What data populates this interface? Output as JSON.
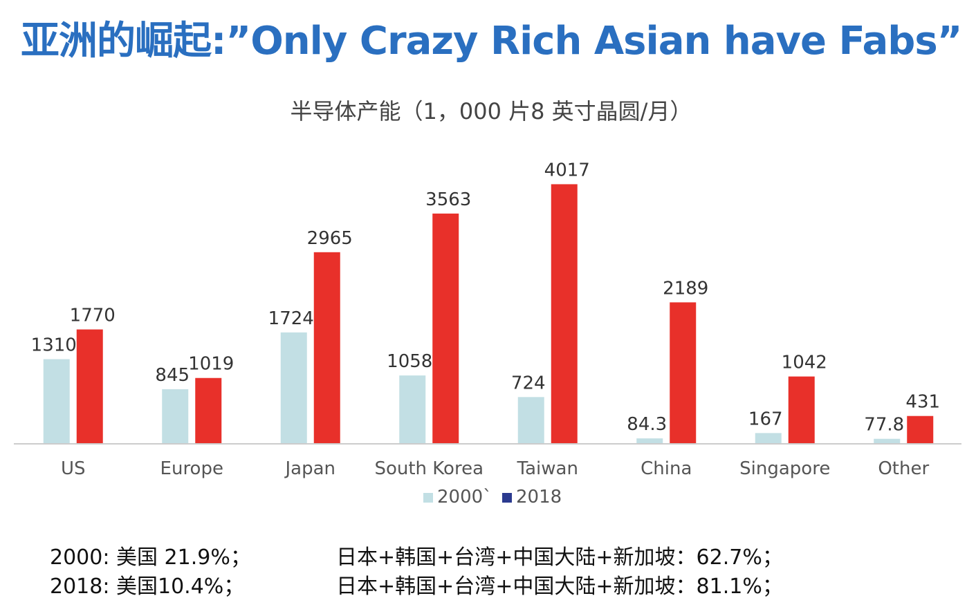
{
  "header": {
    "title": "亚洲的崛起:”Only Crazy Rich Asian have Fabs”"
  },
  "chart_data": {
    "type": "bar",
    "title": "半导体产能（1，000 片8 英寸晶圆/月）",
    "xlabel": "",
    "ylabel": "",
    "ylim": [
      0,
      4300
    ],
    "grid": false,
    "legend_position": "bottom",
    "categories": [
      "US",
      "Europe",
      "Japan",
      "South Korea",
      "Taiwan",
      "China",
      "Singapore",
      "Other"
    ],
    "series": [
      {
        "name": "2000`",
        "color": "#c2dfe4",
        "values": [
          1310,
          845,
          1724,
          1058,
          724,
          84.3,
          167,
          77.8
        ],
        "labels": [
          "1310",
          "845",
          "1724",
          "1058",
          "724",
          "84.3",
          "167",
          "77.8"
        ]
      },
      {
        "name": "2018",
        "color": "#e8302a",
        "legend_color": "#2b3a8f",
        "values": [
          1770,
          1019,
          2965,
          3563,
          4017,
          2189,
          1042,
          431
        ],
        "labels": [
          "1770",
          "1019",
          "2965",
          "3563",
          "4017",
          "2189",
          "1042",
          "431"
        ]
      }
    ]
  },
  "footnotes": [
    {
      "left": "2000: 美国 21.9%；",
      "right": "日本+韩国+台湾+中国大陆+新加坡：62.7%；"
    },
    {
      "left": "2018: 美国10.4%；",
      "right": "日本+韩国+台湾+中国大陆+新加坡：81.1%；"
    }
  ]
}
